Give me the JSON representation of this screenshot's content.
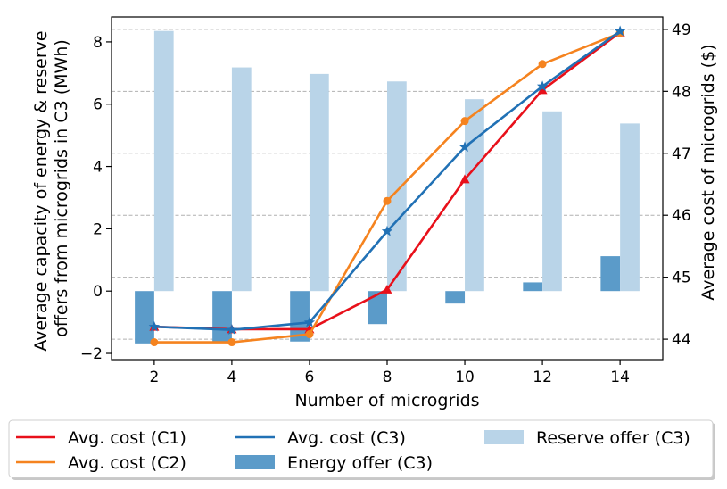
{
  "chart_data": {
    "type": "bar+line",
    "title": "",
    "x": [
      2,
      4,
      6,
      8,
      10,
      12,
      14
    ],
    "xlabel": "Number of microgrids",
    "xticks": [
      "2",
      "4",
      "6",
      "8",
      "10",
      "12",
      "14"
    ],
    "xlim": [
      0.9,
      15.1
    ],
    "left_axis": {
      "label_lines": [
        "Average capacity of energy & reserve",
        "offers from microgrids in C3 (MWh)"
      ],
      "ylim": [
        -2.2,
        8.8
      ],
      "ticks": [
        -2,
        0,
        2,
        4,
        6,
        8
      ],
      "tick_labels": [
        "−2",
        "0",
        "2",
        "4",
        "6",
        "8"
      ]
    },
    "right_axis": {
      "label": "Average cost of microgrids ($)",
      "ylim": [
        43.67,
        49.2
      ],
      "ticks": [
        44,
        45,
        46,
        47,
        48,
        49
      ],
      "tick_labels": [
        "44",
        "45",
        "46",
        "47",
        "48",
        "49"
      ],
      "grid": true
    },
    "bar_series": [
      {
        "name": "Energy offer (C3)",
        "axis": "left",
        "offset": -0.25,
        "color": "#5b9bc9",
        "values": [
          -1.68,
          -1.62,
          -1.62,
          -1.06,
          -0.4,
          0.28,
          1.12
        ]
      },
      {
        "name": "Reserve offer (C3)",
        "axis": "left",
        "offset": 0.25,
        "color": "#b9d4e8",
        "values": [
          8.35,
          7.18,
          6.97,
          6.73,
          6.16,
          5.77,
          5.38
        ]
      }
    ],
    "line_series": [
      {
        "name": "Avg. cost (C1)",
        "axis": "right",
        "color": "#e8101a",
        "marker": "triangle",
        "values": [
          44.2,
          44.16,
          44.16,
          44.8,
          46.58,
          48.02,
          48.95
        ]
      },
      {
        "name": "Avg. cost (C2)",
        "axis": "right",
        "color": "#f5831f",
        "marker": "circle",
        "values": [
          43.95,
          43.95,
          44.08,
          46.23,
          47.52,
          48.44,
          48.94
        ]
      },
      {
        "name": "Avg. cost (C3)",
        "axis": "right",
        "color": "#2171b5",
        "marker": "star",
        "values": [
          44.2,
          44.15,
          44.27,
          45.74,
          47.1,
          48.08,
          48.97
        ]
      }
    ],
    "legend": {
      "placement": "bottom",
      "columns": 3,
      "entries": [
        "Avg. cost (C1)",
        "Avg. cost (C2)",
        "Avg. cost (C3)",
        "Energy offer (C3)",
        "Reserve offer (C3)"
      ]
    }
  }
}
